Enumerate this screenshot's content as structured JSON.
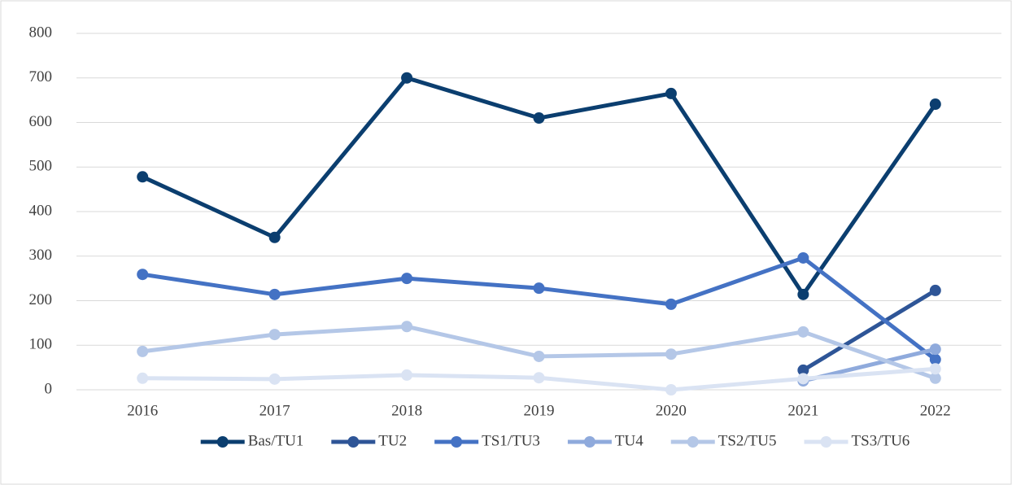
{
  "chart_data": {
    "type": "line",
    "categories": [
      "2016",
      "2017",
      "2018",
      "2019",
      "2020",
      "2021",
      "2022"
    ],
    "series": [
      {
        "name": "Bas/TU1",
        "color": "#0b3e6f",
        "values": [
          478,
          342,
          700,
          610,
          665,
          214,
          641
        ]
      },
      {
        "name": "TU2",
        "color": "#2e5597",
        "values": [
          null,
          null,
          null,
          null,
          null,
          44,
          223
        ]
      },
      {
        "name": "TS1/TU3",
        "color": "#4472c4",
        "values": [
          259,
          214,
          250,
          228,
          192,
          296,
          68
        ]
      },
      {
        "name": "TU4",
        "color": "#8faadc",
        "values": [
          null,
          null,
          null,
          null,
          null,
          20,
          91
        ]
      },
      {
        "name": "TS2/TU5",
        "color": "#b4c7e7",
        "values": [
          86,
          124,
          142,
          75,
          80,
          130,
          26
        ]
      },
      {
        "name": "TS3/TU6",
        "color": "#dae3f3",
        "values": [
          26,
          24,
          33,
          27,
          0,
          25,
          47
        ]
      }
    ],
    "ylim": [
      0,
      800
    ],
    "yticks": [
      0,
      100,
      200,
      300,
      400,
      500,
      600,
      700,
      800
    ],
    "grid": true,
    "legend": "bottom"
  }
}
